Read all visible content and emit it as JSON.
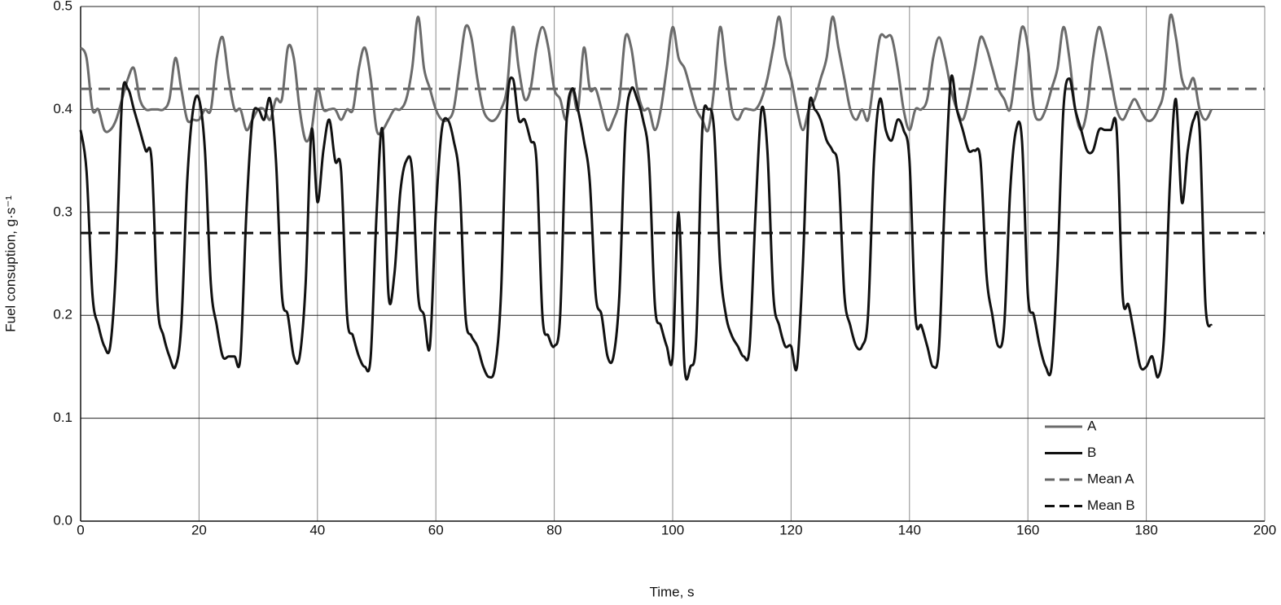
{
  "chart_data": {
    "type": "line",
    "xlabel": "Time, s",
    "ylabel": "Fuel consuption, g·s⁻¹",
    "xlim": [
      0,
      200
    ],
    "xticks": [
      0,
      20,
      40,
      60,
      80,
      100,
      120,
      140,
      160,
      180,
      200
    ],
    "ylim": [
      0,
      0.5
    ],
    "yticks": [
      {
        "value": 0,
        "label": "0.0"
      },
      0.1,
      0.2,
      0.3,
      0.4,
      0.5
    ],
    "grid": true,
    "legend": "lower right",
    "x": [
      0,
      1,
      2,
      3,
      4,
      5,
      6,
      7,
      8,
      9,
      10,
      11,
      12,
      13,
      14,
      15,
      16,
      17,
      18,
      19,
      20,
      21,
      22,
      23,
      24,
      25,
      26,
      27,
      28,
      29,
      30,
      31,
      32,
      33,
      34,
      35,
      36,
      37,
      38,
      39,
      40,
      41,
      42,
      43,
      44,
      45,
      46,
      47,
      48,
      49,
      50,
      51,
      52,
      53,
      54,
      55,
      56,
      57,
      58,
      59,
      60,
      61,
      62,
      63,
      64,
      65,
      66,
      67,
      68,
      69,
      70,
      71,
      72,
      73,
      74,
      75,
      76,
      77,
      78,
      79,
      80,
      81,
      82,
      83,
      84,
      85,
      86,
      87,
      88,
      89,
      90,
      91,
      92,
      93,
      94,
      95,
      96,
      97,
      98,
      99,
      100,
      101,
      102,
      103,
      104,
      105,
      106,
      107,
      108,
      109,
      110,
      111,
      112,
      113,
      114,
      115,
      116,
      117,
      118,
      119,
      120,
      121,
      122,
      123,
      124,
      125,
      126,
      127,
      128,
      129,
      130,
      131,
      132,
      133,
      134,
      135,
      136,
      137,
      138,
      139,
      140,
      141,
      142,
      143,
      144,
      145,
      146,
      147,
      148,
      149,
      150,
      151,
      152,
      153,
      154,
      155,
      156,
      157,
      158,
      159,
      160,
      161,
      162,
      163,
      164,
      165,
      166,
      167,
      168,
      169,
      170,
      171,
      172,
      173,
      174,
      175,
      176,
      177,
      178,
      179,
      180,
      181,
      182,
      183,
      184,
      185,
      186,
      187,
      188,
      189,
      190,
      191
    ],
    "series": [
      {
        "name": "A",
        "color": "#6b6b6b",
        "values": [
          0.46,
          0.45,
          0.4,
          0.4,
          0.38,
          0.38,
          0.39,
          0.41,
          0.43,
          0.44,
          0.41,
          0.4,
          0.4,
          0.4,
          0.4,
          0.41,
          0.45,
          0.42,
          0.39,
          0.39,
          0.39,
          0.4,
          0.4,
          0.45,
          0.47,
          0.43,
          0.4,
          0.4,
          0.38,
          0.39,
          0.4,
          0.4,
          0.39,
          0.41,
          0.41,
          0.46,
          0.45,
          0.4,
          0.37,
          0.38,
          0.42,
          0.4,
          0.4,
          0.4,
          0.39,
          0.4,
          0.4,
          0.44,
          0.46,
          0.43,
          0.38,
          0.38,
          0.39,
          0.4,
          0.4,
          0.41,
          0.44,
          0.49,
          0.44,
          0.42,
          0.4,
          0.39,
          0.39,
          0.4,
          0.44,
          0.48,
          0.47,
          0.43,
          0.4,
          0.39,
          0.39,
          0.4,
          0.42,
          0.48,
          0.44,
          0.41,
          0.42,
          0.46,
          0.48,
          0.46,
          0.42,
          0.41,
          0.39,
          0.42,
          0.4,
          0.46,
          0.42,
          0.42,
          0.4,
          0.38,
          0.39,
          0.41,
          0.47,
          0.46,
          0.42,
          0.4,
          0.4,
          0.38,
          0.4,
          0.44,
          0.48,
          0.45,
          0.44,
          0.42,
          0.4,
          0.39,
          0.38,
          0.42,
          0.48,
          0.44,
          0.4,
          0.39,
          0.4,
          0.4,
          0.4,
          0.41,
          0.43,
          0.46,
          0.49,
          0.45,
          0.43,
          0.4,
          0.38,
          0.4,
          0.41,
          0.43,
          0.45,
          0.49,
          0.46,
          0.43,
          0.4,
          0.39,
          0.4,
          0.39,
          0.43,
          0.47,
          0.47,
          0.47,
          0.44,
          0.4,
          0.38,
          0.4,
          0.4,
          0.41,
          0.45,
          0.47,
          0.45,
          0.42,
          0.4,
          0.39,
          0.41,
          0.44,
          0.47,
          0.46,
          0.44,
          0.42,
          0.41,
          0.4,
          0.44,
          0.48,
          0.46,
          0.4,
          0.39,
          0.4,
          0.42,
          0.44,
          0.48,
          0.45,
          0.4,
          0.38,
          0.4,
          0.45,
          0.48,
          0.46,
          0.43,
          0.4,
          0.39,
          0.4,
          0.41,
          0.4,
          0.39,
          0.39,
          0.4,
          0.42,
          0.49,
          0.47,
          0.43,
          0.42,
          0.43,
          0.4,
          0.39,
          0.4
        ]
      },
      {
        "name": "B",
        "color": "#111111",
        "values": [
          0.38,
          0.34,
          0.22,
          0.19,
          0.17,
          0.17,
          0.25,
          0.41,
          0.42,
          0.4,
          0.38,
          0.36,
          0.35,
          0.21,
          0.18,
          0.16,
          0.15,
          0.19,
          0.33,
          0.4,
          0.41,
          0.36,
          0.23,
          0.19,
          0.16,
          0.16,
          0.16,
          0.16,
          0.3,
          0.39,
          0.4,
          0.39,
          0.41,
          0.35,
          0.22,
          0.2,
          0.16,
          0.16,
          0.23,
          0.38,
          0.31,
          0.36,
          0.39,
          0.35,
          0.34,
          0.2,
          0.18,
          0.16,
          0.15,
          0.16,
          0.3,
          0.38,
          0.22,
          0.24,
          0.32,
          0.35,
          0.34,
          0.22,
          0.2,
          0.17,
          0.3,
          0.38,
          0.39,
          0.37,
          0.33,
          0.2,
          0.18,
          0.17,
          0.15,
          0.14,
          0.15,
          0.22,
          0.4,
          0.43,
          0.39,
          0.39,
          0.37,
          0.35,
          0.2,
          0.18,
          0.17,
          0.2,
          0.38,
          0.42,
          0.4,
          0.37,
          0.33,
          0.22,
          0.2,
          0.16,
          0.16,
          0.22,
          0.38,
          0.42,
          0.41,
          0.39,
          0.35,
          0.21,
          0.19,
          0.17,
          0.16,
          0.3,
          0.15,
          0.15,
          0.18,
          0.38,
          0.4,
          0.38,
          0.25,
          0.2,
          0.18,
          0.17,
          0.16,
          0.17,
          0.3,
          0.4,
          0.36,
          0.22,
          0.19,
          0.17,
          0.17,
          0.15,
          0.25,
          0.4,
          0.4,
          0.39,
          0.37,
          0.36,
          0.34,
          0.22,
          0.19,
          0.17,
          0.17,
          0.2,
          0.35,
          0.41,
          0.38,
          0.37,
          0.39,
          0.38,
          0.35,
          0.2,
          0.19,
          0.17,
          0.15,
          0.17,
          0.32,
          0.43,
          0.4,
          0.38,
          0.36,
          0.36,
          0.35,
          0.24,
          0.2,
          0.17,
          0.19,
          0.32,
          0.38,
          0.37,
          0.22,
          0.2,
          0.17,
          0.15,
          0.15,
          0.25,
          0.4,
          0.43,
          0.4,
          0.38,
          0.36,
          0.36,
          0.38,
          0.38,
          0.38,
          0.38,
          0.22,
          0.21,
          0.18,
          0.15,
          0.15,
          0.16,
          0.14,
          0.18,
          0.33,
          0.41,
          0.31,
          0.36,
          0.39,
          0.38,
          0.21,
          0.19
        ]
      }
    ],
    "hlines": [
      {
        "name": "Mean A",
        "color": "#666666",
        "value": 0.42,
        "dashed": true
      },
      {
        "name": "Mean B",
        "color": "#111111",
        "value": 0.28,
        "dashed": true
      }
    ]
  }
}
